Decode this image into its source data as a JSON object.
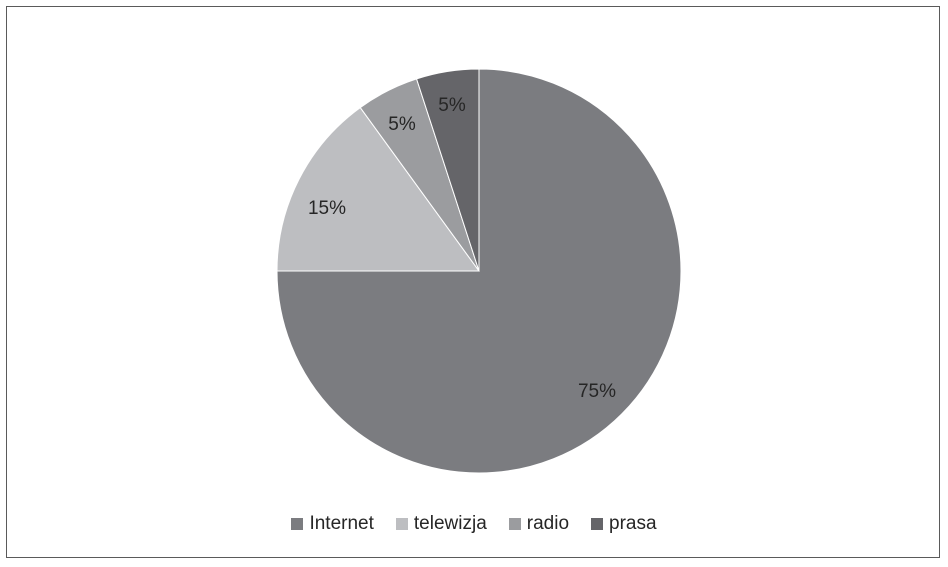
{
  "chart_data": {
    "type": "pie",
    "slices": [
      {
        "label": "Internet",
        "value": 75,
        "display": "75%",
        "color": "#7b7c80"
      },
      {
        "label": "telewizja",
        "value": 15,
        "display": "15%",
        "color": "#bdbec1"
      },
      {
        "label": "radio",
        "value": 5,
        "display": "5%",
        "color": "#9b9c9f"
      },
      {
        "label": "prasa",
        "value": 5,
        "display": "5%",
        "color": "#656569"
      }
    ],
    "legend_position": "bottom",
    "start_angle": "12 o'clock",
    "direction": "clockwise"
  }
}
